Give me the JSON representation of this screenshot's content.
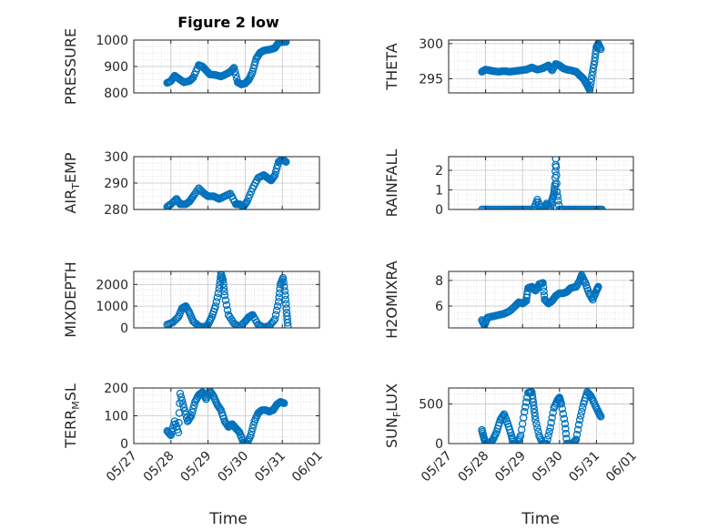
{
  "figure": {
    "title": "Figure 2 low",
    "xlabel": "Time"
  },
  "style": {
    "marker_color": "#0072BD",
    "axis_color": "#262626",
    "grid_color": "#d9d9d9"
  },
  "x_ticks": [
    "05/27",
    "05/28",
    "05/29",
    "05/30",
    "05/31",
    "06/01"
  ],
  "chart_data": [
    {
      "id": "pressure",
      "type": "scatter",
      "ylabel": "PRESSURE",
      "ylim": [
        800,
        1000
      ],
      "yticks": [
        800,
        900,
        1000
      ],
      "points": [
        [
          0.9,
          838
        ],
        [
          1.0,
          845
        ],
        [
          1.1,
          865
        ],
        [
          1.2,
          855
        ],
        [
          1.35,
          840
        ],
        [
          1.5,
          845
        ],
        [
          1.6,
          858
        ],
        [
          1.75,
          905
        ],
        [
          1.85,
          900
        ],
        [
          1.95,
          885
        ],
        [
          2.05,
          870
        ],
        [
          2.2,
          868
        ],
        [
          2.35,
          862
        ],
        [
          2.5,
          872
        ],
        [
          2.6,
          880
        ],
        [
          2.7,
          895
        ],
        [
          2.8,
          840
        ],
        [
          2.9,
          832
        ],
        [
          3.0,
          836
        ],
        [
          3.1,
          850
        ],
        [
          3.2,
          880
        ],
        [
          3.3,
          930
        ],
        [
          3.4,
          952
        ],
        [
          3.5,
          960
        ],
        [
          3.6,
          963
        ],
        [
          3.7,
          965
        ],
        [
          3.8,
          970
        ],
        [
          3.9,
          990
        ],
        [
          4.0,
          993
        ],
        [
          4.1,
          993
        ]
      ]
    },
    {
      "id": "theta",
      "type": "scatter",
      "ylabel": "THETA",
      "ylim": [
        293,
        300.5
      ],
      "yticks": [
        295,
        300
      ],
      "points": [
        [
          0.9,
          296.0
        ],
        [
          1.0,
          296.3
        ],
        [
          1.1,
          296.2
        ],
        [
          1.2,
          296.1
        ],
        [
          1.35,
          296.0
        ],
        [
          1.5,
          296.1
        ],
        [
          1.65,
          296.0
        ],
        [
          1.8,
          296.1
        ],
        [
          1.95,
          296.2
        ],
        [
          2.1,
          296.3
        ],
        [
          2.25,
          296.6
        ],
        [
          2.4,
          296.3
        ],
        [
          2.55,
          296.5
        ],
        [
          2.7,
          296.9
        ],
        [
          2.8,
          296.2
        ],
        [
          2.9,
          297.1
        ],
        [
          3.0,
          296.9
        ],
        [
          3.1,
          296.5
        ],
        [
          3.2,
          296.3
        ],
        [
          3.3,
          296.2
        ],
        [
          3.45,
          296.0
        ],
        [
          3.55,
          295.5
        ],
        [
          3.65,
          295.0
        ],
        [
          3.75,
          294.1
        ],
        [
          3.82,
          293.4
        ],
        [
          3.88,
          295.5
        ],
        [
          3.95,
          297.5
        ],
        [
          4.0,
          299.5
        ],
        [
          4.05,
          300.0
        ],
        [
          4.12,
          299.2
        ]
      ]
    },
    {
      "id": "air_temp",
      "type": "scatter",
      "ylabel": "AIR",
      "ylabel_sub": "T",
      "ylabel_suffix": "EMP",
      "ylim": [
        280,
        300
      ],
      "yticks": [
        280,
        290,
        300
      ],
      "points": [
        [
          0.9,
          281
        ],
        [
          1.0,
          282
        ],
        [
          1.15,
          284
        ],
        [
          1.25,
          282
        ],
        [
          1.4,
          282
        ],
        [
          1.5,
          283
        ],
        [
          1.6,
          285
        ],
        [
          1.75,
          288
        ],
        [
          1.9,
          286
        ],
        [
          2.0,
          285
        ],
        [
          2.15,
          285
        ],
        [
          2.3,
          284
        ],
        [
          2.45,
          285
        ],
        [
          2.6,
          286
        ],
        [
          2.75,
          282
        ],
        [
          2.85,
          282
        ],
        [
          2.95,
          281
        ],
        [
          3.05,
          283
        ],
        [
          3.2,
          288
        ],
        [
          3.35,
          292
        ],
        [
          3.5,
          293
        ],
        [
          3.6,
          292
        ],
        [
          3.7,
          291
        ],
        [
          3.8,
          293
        ],
        [
          3.9,
          298
        ],
        [
          4.0,
          299
        ],
        [
          4.1,
          298
        ]
      ]
    },
    {
      "id": "rainfall",
      "type": "scatter",
      "ylabel": "RAINFALL",
      "ylim": [
        0,
        2.7
      ],
      "yticks": [
        0,
        1,
        2
      ],
      "points": [
        [
          0.9,
          0
        ],
        [
          1.1,
          0
        ],
        [
          1.3,
          0
        ],
        [
          1.5,
          0
        ],
        [
          1.7,
          0
        ],
        [
          1.9,
          0
        ],
        [
          2.1,
          0
        ],
        [
          2.3,
          0
        ],
        [
          2.4,
          0.5
        ],
        [
          2.5,
          0
        ],
        [
          2.6,
          0
        ],
        [
          2.65,
          0.3
        ],
        [
          2.75,
          0
        ],
        [
          2.8,
          0.5
        ],
        [
          2.85,
          0.8
        ],
        [
          2.88,
          1.3
        ],
        [
          2.9,
          2.6
        ],
        [
          2.93,
          0.9
        ],
        [
          3.0,
          0
        ],
        [
          3.2,
          0
        ],
        [
          3.4,
          0
        ],
        [
          3.6,
          0
        ],
        [
          3.8,
          0
        ],
        [
          4.0,
          0
        ],
        [
          4.15,
          0
        ]
      ]
    },
    {
      "id": "mixdepth",
      "type": "scatter",
      "ylabel": "MIXDEPTH",
      "ylim": [
        0,
        2600
      ],
      "yticks": [
        0,
        1000,
        2000
      ],
      "points": [
        [
          0.9,
          150
        ],
        [
          1.05,
          250
        ],
        [
          1.2,
          500
        ],
        [
          1.3,
          900
        ],
        [
          1.4,
          1000
        ],
        [
          1.5,
          700
        ],
        [
          1.6,
          300
        ],
        [
          1.75,
          80
        ],
        [
          1.9,
          30
        ],
        [
          2.0,
          150
        ],
        [
          2.1,
          500
        ],
        [
          2.2,
          1000
        ],
        [
          2.3,
          1800
        ],
        [
          2.35,
          2500
        ],
        [
          2.4,
          2200
        ],
        [
          2.45,
          1500
        ],
        [
          2.55,
          600
        ],
        [
          2.7,
          200
        ],
        [
          2.85,
          50
        ],
        [
          3.0,
          300
        ],
        [
          3.1,
          500
        ],
        [
          3.2,
          600
        ],
        [
          3.35,
          150
        ],
        [
          3.5,
          30
        ],
        [
          3.65,
          80
        ],
        [
          3.8,
          400
        ],
        [
          3.9,
          1200
        ],
        [
          3.95,
          2000
        ],
        [
          4.02,
          2300
        ],
        [
          4.08,
          1500
        ],
        [
          4.12,
          700
        ],
        [
          4.15,
          80
        ]
      ]
    },
    {
      "id": "h2omixra",
      "type": "scatter",
      "ylabel": "H2OMIXRA",
      "ylim": [
        4.3,
        8.7
      ],
      "yticks": [
        6,
        8
      ],
      "points": [
        [
          0.9,
          4.9
        ],
        [
          0.97,
          4.5
        ],
        [
          1.05,
          5.1
        ],
        [
          1.2,
          5.2
        ],
        [
          1.35,
          5.3
        ],
        [
          1.5,
          5.4
        ],
        [
          1.65,
          5.6
        ],
        [
          1.8,
          6.0
        ],
        [
          1.9,
          6.3
        ],
        [
          2.0,
          6.2
        ],
        [
          2.1,
          6.4
        ],
        [
          2.15,
          7.4
        ],
        [
          2.25,
          7.5
        ],
        [
          2.35,
          7.2
        ],
        [
          2.45,
          7.7
        ],
        [
          2.55,
          7.8
        ],
        [
          2.6,
          6.5
        ],
        [
          2.7,
          6.2
        ],
        [
          2.8,
          6.4
        ],
        [
          2.9,
          6.8
        ],
        [
          3.0,
          7.0
        ],
        [
          3.1,
          7.0
        ],
        [
          3.2,
          7.1
        ],
        [
          3.3,
          7.4
        ],
        [
          3.45,
          7.5
        ],
        [
          3.55,
          8.0
        ],
        [
          3.6,
          8.4
        ],
        [
          3.7,
          7.8
        ],
        [
          3.8,
          7.0
        ],
        [
          3.9,
          6.5
        ],
        [
          4.0,
          7.2
        ],
        [
          4.05,
          7.5
        ]
      ]
    },
    {
      "id": "terr_msl",
      "type": "scatter",
      "ylabel": "TERR",
      "ylabel_sub": "M",
      "ylabel_suffix": "SL",
      "ylim": [
        0,
        200
      ],
      "yticks": [
        0,
        100,
        200
      ],
      "points": [
        [
          0.9,
          45
        ],
        [
          1.0,
          30
        ],
        [
          1.1,
          80
        ],
        [
          1.2,
          40
        ],
        [
          1.25,
          180
        ],
        [
          1.35,
          130
        ],
        [
          1.45,
          80
        ],
        [
          1.55,
          100
        ],
        [
          1.65,
          150
        ],
        [
          1.75,
          175
        ],
        [
          1.85,
          185
        ],
        [
          1.95,
          160
        ],
        [
          2.05,
          190
        ],
        [
          2.15,
          170
        ],
        [
          2.25,
          140
        ],
        [
          2.35,
          120
        ],
        [
          2.45,
          80
        ],
        [
          2.55,
          60
        ],
        [
          2.65,
          70
        ],
        [
          2.75,
          55
        ],
        [
          2.85,
          40
        ],
        [
          2.95,
          5
        ],
        [
          3.05,
          0
        ],
        [
          3.15,
          30
        ],
        [
          3.25,
          80
        ],
        [
          3.35,
          110
        ],
        [
          3.45,
          120
        ],
        [
          3.55,
          120
        ],
        [
          3.65,
          115
        ],
        [
          3.75,
          120
        ],
        [
          3.85,
          140
        ],
        [
          3.95,
          150
        ],
        [
          4.05,
          145
        ]
      ]
    },
    {
      "id": "sun_flux",
      "type": "scatter",
      "ylabel": "SUN",
      "ylabel_sub": "F",
      "ylabel_suffix": "LUX",
      "ylim": [
        0,
        700
      ],
      "yticks": [
        0,
        500
      ],
      "points": [
        [
          0.9,
          170
        ],
        [
          0.95,
          80
        ],
        [
          1.0,
          0
        ],
        [
          1.1,
          0
        ],
        [
          1.2,
          50
        ],
        [
          1.3,
          150
        ],
        [
          1.4,
          300
        ],
        [
          1.5,
          370
        ],
        [
          1.6,
          250
        ],
        [
          1.7,
          100
        ],
        [
          1.75,
          0
        ],
        [
          1.85,
          0
        ],
        [
          1.95,
          100
        ],
        [
          2.05,
          400
        ],
        [
          2.15,
          640
        ],
        [
          2.25,
          650
        ],
        [
          2.3,
          480
        ],
        [
          2.35,
          300
        ],
        [
          2.45,
          100
        ],
        [
          2.55,
          0
        ],
        [
          2.65,
          0
        ],
        [
          2.75,
          200
        ],
        [
          2.85,
          450
        ],
        [
          2.95,
          550
        ],
        [
          3.0,
          580
        ],
        [
          3.05,
          500
        ],
        [
          3.15,
          250
        ],
        [
          3.2,
          0
        ],
        [
          3.35,
          0
        ],
        [
          3.45,
          50
        ],
        [
          3.55,
          300
        ],
        [
          3.65,
          500
        ],
        [
          3.75,
          650
        ],
        [
          3.85,
          600
        ],
        [
          3.95,
          500
        ],
        [
          4.05,
          400
        ],
        [
          4.12,
          340
        ]
      ]
    }
  ]
}
